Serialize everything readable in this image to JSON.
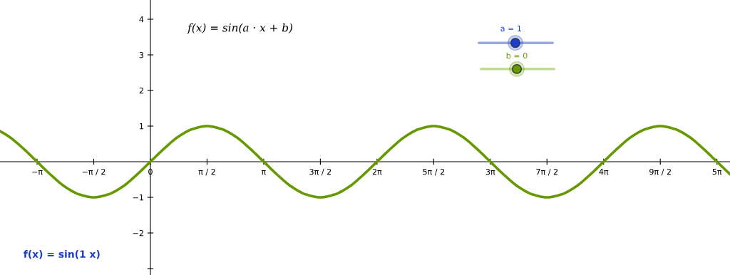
{
  "chart_data": {
    "type": "line",
    "annotations": [
      "f(x) = sin(a · x + b)",
      "a = 1",
      "b = 0",
      "f(x) = sin(1 x)"
    ],
    "series": [
      {
        "color": "#669900",
        "x": [
          -4.17,
          -3.927,
          -3.534,
          -3.142,
          -2.749,
          -2.356,
          -1.963,
          -1.571,
          -1.178,
          -0.785,
          -0.393,
          0,
          0.393,
          0.785,
          1.178,
          1.571,
          1.963,
          2.356,
          2.749,
          3.142,
          3.534,
          3.927,
          4.32,
          4.712,
          5.105,
          5.498,
          5.89,
          6.283,
          6.676,
          7.069,
          7.461,
          7.854,
          8.247,
          8.639,
          9.032,
          9.425,
          9.817,
          10.21,
          10.603,
          10.996,
          11.388,
          11.781,
          12.174,
          12.566,
          12.959,
          13.352,
          13.744,
          14.137,
          14.53,
          14.923,
          15.315,
          15.708,
          16.07
        ],
        "values": [
          0.86,
          0.71,
          0.38,
          0,
          -0.38,
          -0.71,
          -0.92,
          -1,
          -0.92,
          -0.71,
          -0.38,
          0,
          0.38,
          0.71,
          0.92,
          1,
          0.92,
          0.71,
          0.38,
          0,
          -0.38,
          -0.71,
          -0.92,
          -1,
          -0.92,
          -0.71,
          -0.38,
          0,
          0.38,
          0.71,
          0.92,
          1,
          0.92,
          0.71,
          0.38,
          0,
          -0.38,
          -0.71,
          -0.92,
          -1,
          -0.92,
          -0.71,
          -0.38,
          0,
          0.38,
          0.71,
          0.92,
          1,
          0.92,
          0.71,
          0.38,
          0,
          -0.35
        ]
      }
    ],
    "xlim": [
      -4.17,
      16.07
    ],
    "ylim": [
      -3.18,
      4.54
    ],
    "xticks": [
      {
        "value": -3.1416,
        "label": "−π"
      },
      {
        "value": -1.5708,
        "label": "−π / 2"
      },
      0,
      {
        "value": 1.5708,
        "label": "π / 2"
      },
      {
        "value": 3.1416,
        "label": "π"
      },
      {
        "value": 4.7124,
        "label": "3π / 2"
      },
      {
        "value": 6.2832,
        "label": "2π"
      },
      {
        "value": 7.854,
        "label": "5π / 2"
      },
      {
        "value": 9.4248,
        "label": "3π"
      },
      {
        "value": 10.9956,
        "label": "7π / 2"
      },
      {
        "value": 12.5664,
        "label": "4π"
      },
      {
        "value": 14.1372,
        "label": "9π / 2"
      },
      {
        "value": 15.708,
        "label": "5π"
      }
    ],
    "yticks": [
      {
        "value": -3,
        "label": null
      },
      {
        "value": -2,
        "label": "−2"
      },
      {
        "value": -1,
        "label": "−1"
      },
      1,
      2,
      3,
      4
    ],
    "grid": false,
    "legend": false,
    "marker": "none",
    "line_style": "solid"
  }
}
